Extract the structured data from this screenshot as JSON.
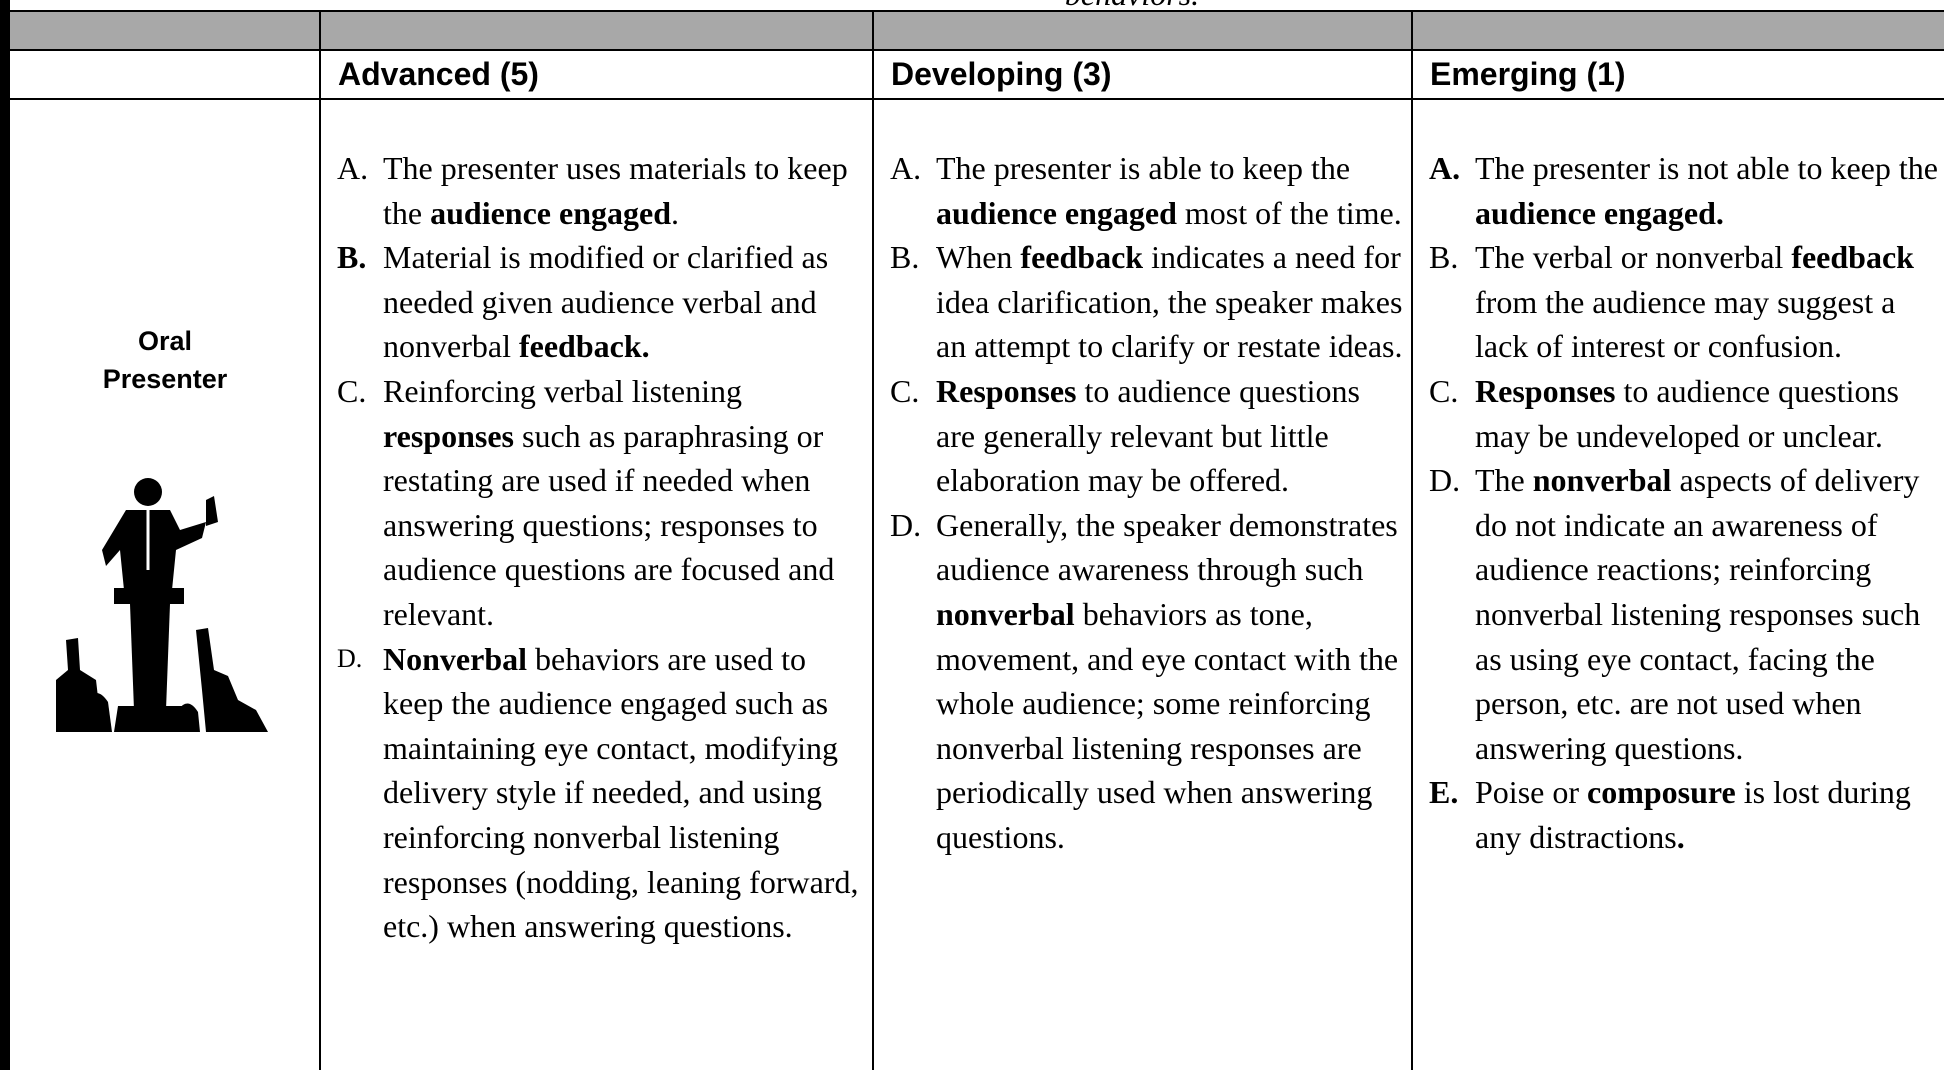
{
  "top_caption": "behaviors.",
  "row_label": "Oral Presenter",
  "columns": [
    {
      "header": "Advanced (5)",
      "items": [
        {
          "letter": "A.",
          "runs": [
            {
              "text": "The presenter uses materials to keep the "
            },
            {
              "text": "audience engaged",
              "bold": true
            },
            {
              "text": "."
            }
          ]
        },
        {
          "letter": "B.",
          "letter_bold": true,
          "runs": [
            {
              "text": "Material is modified or clarified as needed given audience verbal and nonverbal "
            },
            {
              "text": "feedback.",
              "bold": true
            }
          ]
        },
        {
          "letter": "C.",
          "runs": [
            {
              "text": "Reinforcing verbal listening "
            },
            {
              "text": "responses",
              "bold": true
            },
            {
              "text": " such as paraphrasing or restating are used if needed when answering questions; responses to audience questions are focused and relevant."
            }
          ]
        },
        {
          "letter": "D.",
          "letter_small": true,
          "runs": [
            {
              "text": "Nonverbal",
              "bold": true
            },
            {
              "text": " behaviors are used to keep the audience engaged such as maintaining eye contact, modifying delivery style if needed, and using reinforcing nonverbal listening responses (nodding, leaning forward, etc.) when answering questions."
            }
          ]
        }
      ]
    },
    {
      "header": "Developing (3)",
      "items": [
        {
          "letter": "A.",
          "runs": [
            {
              "text": "The presenter is able to keep the "
            },
            {
              "text": "audience engaged",
              "bold": true
            },
            {
              "text": " most of the time."
            }
          ]
        },
        {
          "letter": "B.",
          "runs": [
            {
              "text": "When "
            },
            {
              "text": "feedback",
              "bold": true
            },
            {
              "text": " indicates a need for idea clarification, the speaker makes an attempt to clarify or restate ideas."
            }
          ]
        },
        {
          "letter": "C.",
          "runs": [
            {
              "text": "Responses",
              "bold": true
            },
            {
              "text": " to audience questions are generally relevant but little elaboration may be offered."
            }
          ]
        },
        {
          "letter": "D.",
          "runs": [
            {
              "text": "Generally, the speaker demonstrates audience awareness through such "
            },
            {
              "text": "nonverbal",
              "bold": true
            },
            {
              "text": " behaviors as tone, movement, and eye contact with the whole audience; some reinforcing nonverbal listening responses are periodically used when answering questions."
            }
          ]
        }
      ]
    },
    {
      "header": "Emerging (1)",
      "items": [
        {
          "letter": "A.",
          "letter_bold": true,
          "runs": [
            {
              "text": "The presenter is not able to keep the "
            },
            {
              "text": "audience engaged.",
              "bold": true
            }
          ]
        },
        {
          "letter": "B.",
          "runs": [
            {
              "text": "The verbal or nonverbal "
            },
            {
              "text": "feedback",
              "bold": true
            },
            {
              "text": " from the audience may suggest a lack of interest or confusion."
            }
          ]
        },
        {
          "letter": "C.",
          "runs": [
            {
              "text": "Responses",
              "bold": true
            },
            {
              "text": " to audience questions may be undeveloped or unclear."
            }
          ]
        },
        {
          "letter": "D.",
          "runs": [
            {
              "text": "The "
            },
            {
              "text": "nonverbal",
              "bold": true
            },
            {
              "text": " aspects of delivery do not indicate an awareness of audience reactions; reinforcing nonverbal listening responses such as using eye contact, facing the person, etc. are not used when answering questions."
            }
          ]
        },
        {
          "letter": "E.",
          "letter_bold": true,
          "runs": [
            {
              "text": "Poise or "
            },
            {
              "text": "composure",
              "bold": true
            },
            {
              "text": " is lost during any distractions"
            },
            {
              "text": ".",
              "bold": true
            }
          ]
        }
      ]
    }
  ]
}
